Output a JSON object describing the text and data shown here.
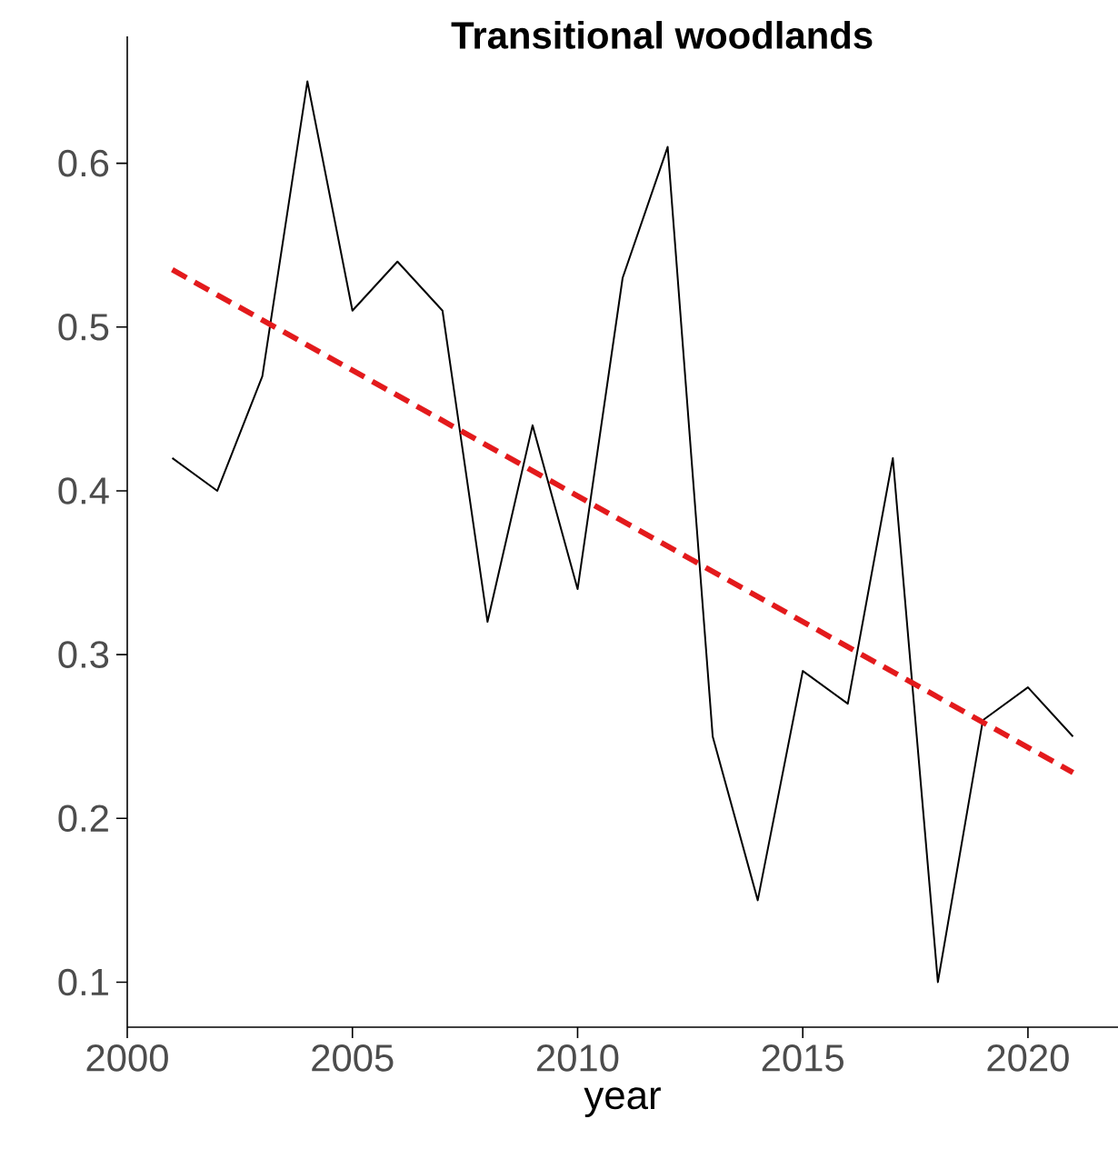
{
  "chart_data": {
    "type": "line",
    "title": "Transitional woodlands",
    "xlabel": "year",
    "x": [
      2001,
      2002,
      2003,
      2004,
      2005,
      2006,
      2007,
      2008,
      2009,
      2010,
      2011,
      2012,
      2013,
      2014,
      2015,
      2016,
      2017,
      2018,
      2019,
      2020,
      2021
    ],
    "series": [
      {
        "color": "#000000",
        "line_style": "solid",
        "values": [
          0.42,
          0.4,
          0.47,
          0.65,
          0.51,
          0.54,
          0.51,
          0.32,
          0.44,
          0.34,
          0.53,
          0.61,
          0.25,
          0.15,
          0.29,
          0.27,
          0.42,
          0.1,
          0.26,
          0.28,
          0.25
        ]
      },
      {
        "type": "line",
        "color": "#e31a1c",
        "line_style": "dashed",
        "x": [
          2001,
          2021
        ],
        "values": [
          0.535,
          0.228
        ]
      }
    ],
    "xlim": [
      2000,
      2022
    ],
    "ylim": [
      0.0725,
      0.6775
    ],
    "xticks": [
      2000,
      2005,
      2010,
      2015,
      2020
    ],
    "yticks": [
      0.1,
      0.2,
      0.3,
      0.4,
      0.5,
      0.6
    ],
    "grid": false
  }
}
